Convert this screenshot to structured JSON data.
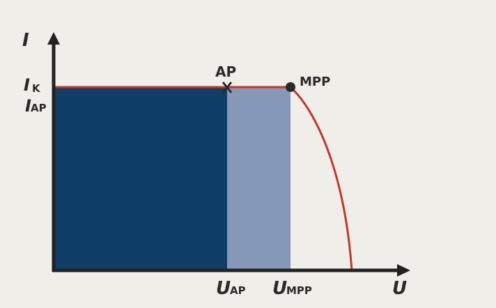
{
  "colors": {
    "background": "#efeee8",
    "axis": "#222222",
    "area_operating": "#0f3f66",
    "area_mpp_extra": "#8598b8",
    "curve": "#c0392b",
    "marker": "#2a2a2a"
  },
  "axes": {
    "y_label": "I",
    "x_label": "U"
  },
  "y_ticks": {
    "ik_main": "I",
    "ik_sub": "K",
    "iap_main": "I",
    "iap_sub": "AP"
  },
  "x_ticks": {
    "uap_main": "U",
    "uap_sub": "AP",
    "umpp_main": "U",
    "umpp_sub": "MPP"
  },
  "points": {
    "ap_label": "AP",
    "mpp_label": "MPP"
  }
}
